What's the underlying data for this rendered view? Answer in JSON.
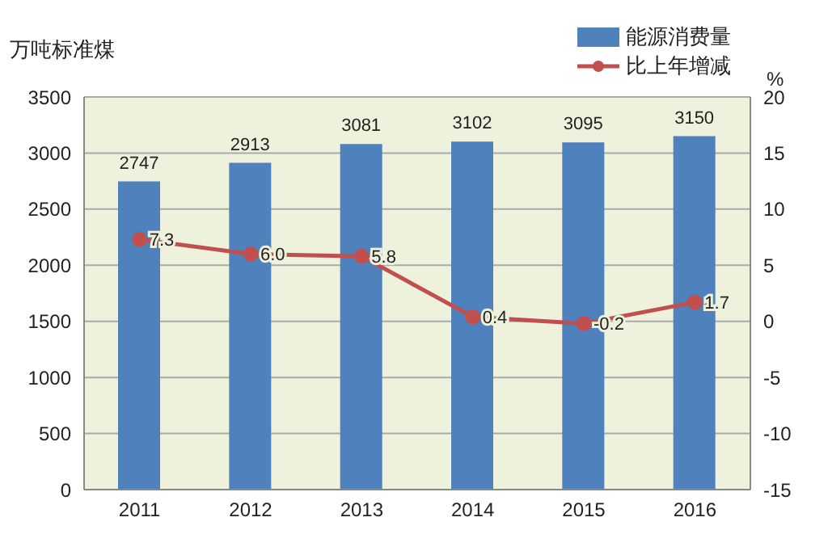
{
  "chart_data": {
    "type": "bar",
    "ylabel": "万吨标准煤",
    "y2label": "%",
    "categories": [
      "2011",
      "2012",
      "2013",
      "2014",
      "2015",
      "2016"
    ],
    "series": [
      {
        "name": "能源消费量",
        "color": "#4f81bd",
        "values": [
          2747,
          2913,
          3081,
          3102,
          3095,
          3150
        ],
        "value_labels": [
          "2747",
          "2913",
          "3081",
          "3102",
          "3095",
          "3150"
        ]
      },
      {
        "name": "比上年增减",
        "type": "line",
        "axis": "y2",
        "color": "#c0504d",
        "marker": "circle",
        "values": [
          7.3,
          6.0,
          5.8,
          0.4,
          -0.2,
          1.7
        ],
        "value_labels": [
          "7.3",
          "6.0",
          "5.8",
          "0.4",
          "-0.2",
          "1.7"
        ]
      }
    ],
    "ylim": [
      0,
      3500
    ],
    "yticks": [
      0,
      500,
      1000,
      1500,
      2000,
      2500,
      3000,
      3500
    ],
    "y2lim": [
      -15,
      20
    ],
    "y2ticks": [
      -15,
      -10,
      -5,
      0,
      5,
      10,
      15,
      20
    ],
    "grid": "y",
    "legend": "top right"
  }
}
